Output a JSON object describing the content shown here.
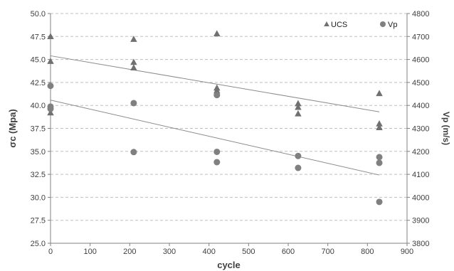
{
  "chart_data": {
    "type": "scatter",
    "xlabel": "cycle",
    "ylabel_left": "σc (Mpa)",
    "ylabel_right": "Vp (m/s)",
    "xlim": [
      0,
      900
    ],
    "ylim_left": [
      25.0,
      50.0
    ],
    "ylim_right": [
      3800,
      4800
    ],
    "x_ticks": [
      "0",
      "100",
      "200",
      "300",
      "400",
      "500",
      "600",
      "700",
      "800",
      "900"
    ],
    "y_left_ticks": [
      "25.0",
      "27.5",
      "30.0",
      "32.5",
      "35.0",
      "37.5",
      "40.0",
      "42.5",
      "45.0",
      "47.5",
      "50.0"
    ],
    "y_right_ticks": [
      "3800",
      "3900",
      "4000",
      "4100",
      "4200",
      "4300",
      "4400",
      "4500",
      "4600",
      "4700",
      "4800"
    ],
    "grid": "horizontal dashed",
    "legend_position": "top-right",
    "series": [
      {
        "name": "UCS",
        "axis": "left",
        "marker": "triangle",
        "color": "#707070",
        "points": [
          [
            0,
            47.5
          ],
          [
            0,
            44.8
          ],
          [
            0,
            39.2
          ],
          [
            210,
            47.2
          ],
          [
            210,
            44.7
          ],
          [
            210,
            44.1
          ],
          [
            420,
            47.8
          ],
          [
            420,
            41.9
          ],
          [
            420,
            41.6
          ],
          [
            625,
            40.2
          ],
          [
            625,
            39.8
          ],
          [
            625,
            39.1
          ],
          [
            830,
            41.3
          ],
          [
            830,
            38.0
          ],
          [
            830,
            37.6
          ]
        ],
        "trendline": [
          [
            0,
            45.4
          ],
          [
            830,
            39.3
          ]
        ]
      },
      {
        "name": "Vp",
        "axis": "right",
        "marker": "circle",
        "color": "#808080",
        "points": [
          [
            0,
            4485
          ],
          [
            0,
            4395
          ],
          [
            0,
            4385
          ],
          [
            210,
            4410
          ],
          [
            210,
            4197
          ],
          [
            420,
            4445
          ],
          [
            420,
            4198
          ],
          [
            420,
            4153
          ],
          [
            625,
            4180
          ],
          [
            625,
            4128
          ],
          [
            830,
            4175
          ],
          [
            830,
            4150
          ],
          [
            830,
            3980
          ]
        ],
        "trendline": [
          [
            0,
            4423
          ],
          [
            830,
            4097
          ]
        ]
      }
    ]
  }
}
